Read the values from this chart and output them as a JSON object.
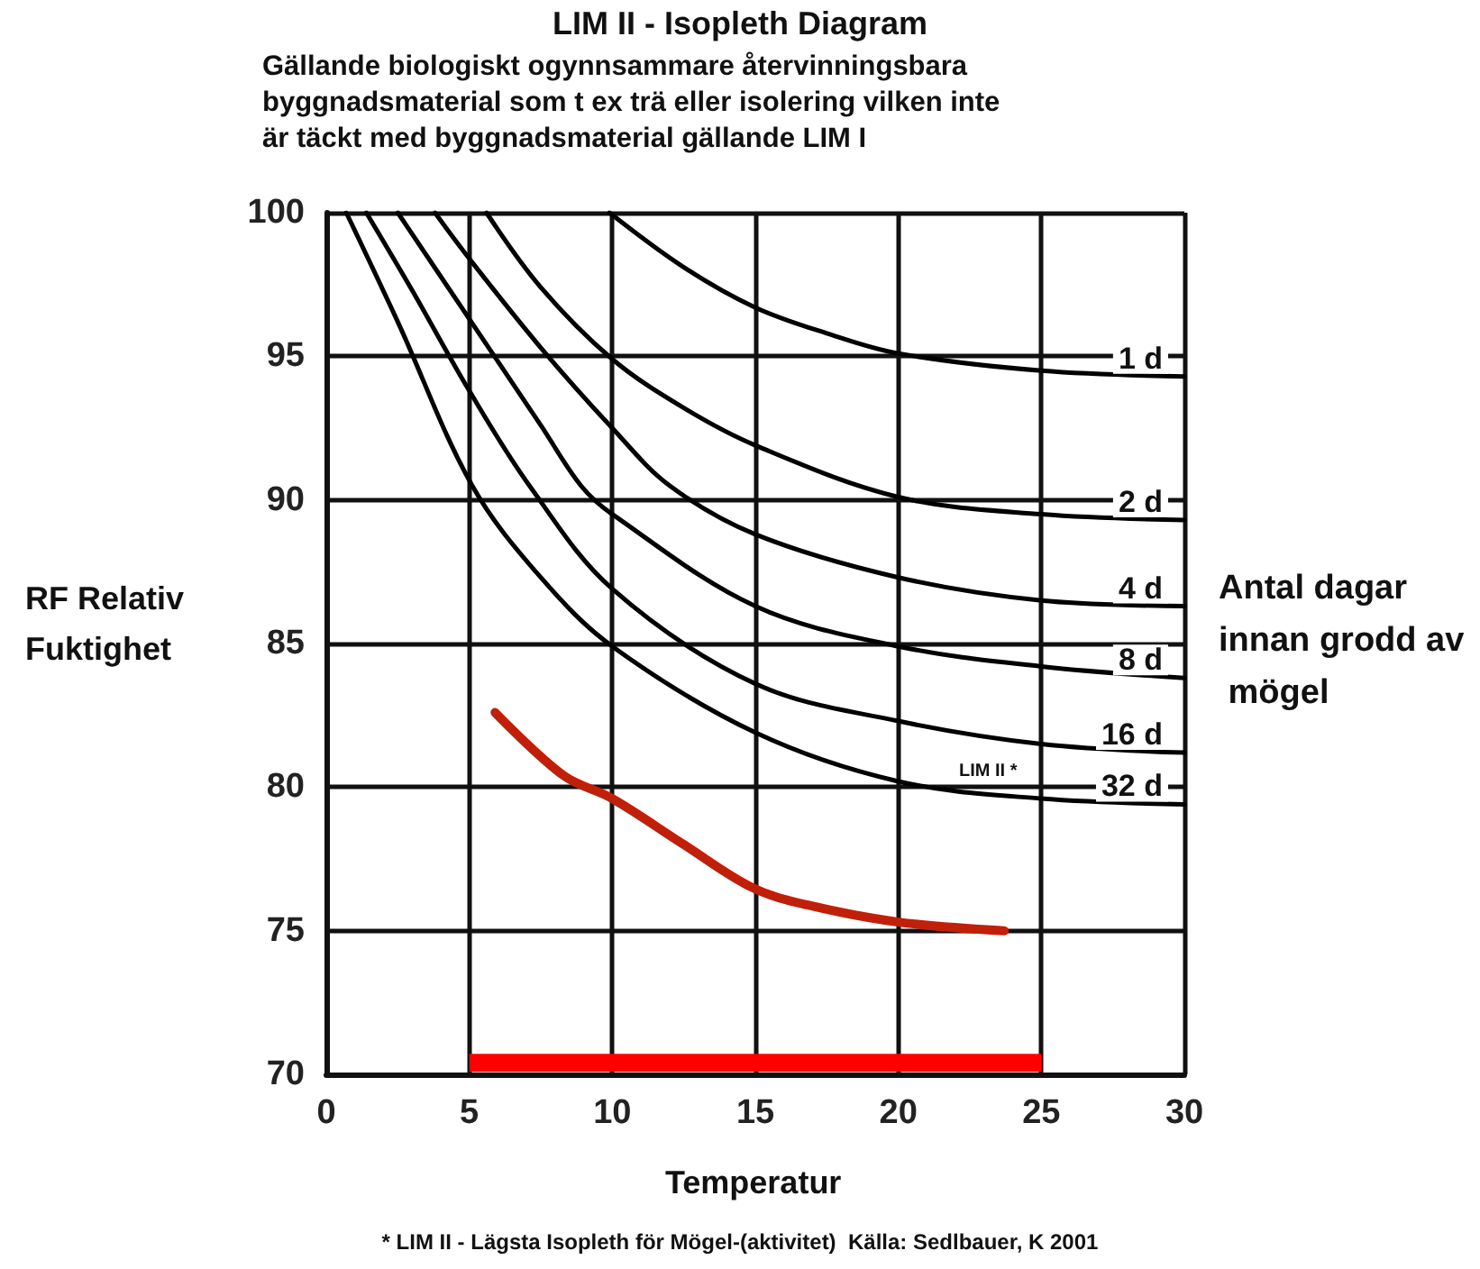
{
  "chart_data": {
    "type": "line",
    "title": "LIM II - Isopleth Diagram",
    "subtitle": "Gällande biologiskt ogynnsammare återvinningsbara byggnadsmaterial som t ex trä eller isolering vilken inte är täckt med byggnadsmaterial gällande LIM I",
    "xlabel": "Temperatur",
    "ylabel": "RF Relativ Fuktighet",
    "legend_title": "Antal dagar innan grodd av mögel",
    "annotations": [
      "LIM II *",
      "* LIM II - Lägsta Isopleth för Mögel-(aktivitet)  Källa: Sedlbauer, K 2001"
    ],
    "xlim": [
      0,
      30
    ],
    "xticks": [
      0,
      5,
      10,
      15,
      20,
      25,
      30
    ],
    "ylim": [
      70,
      100
    ],
    "yticks": [
      70,
      75,
      80,
      85,
      90,
      95,
      100
    ],
    "grid": true,
    "legend": false,
    "marker": "none",
    "line_style": "solid",
    "series": [
      {
        "name": "1 d",
        "color": "#000000",
        "x": [
          9.9,
          12.5,
          15,
          17.5,
          20,
          25,
          30
        ],
        "values": [
          100,
          98.1,
          96.7,
          95.8,
          95.1,
          94.5,
          94.3
        ]
      },
      {
        "name": "2 d",
        "color": "#000000",
        "x": [
          5.6,
          7.5,
          10,
          12.5,
          15,
          20,
          25,
          30
        ],
        "values": [
          100,
          97.4,
          94.9,
          93.2,
          91.9,
          90.1,
          89.5,
          89.3
        ]
      },
      {
        "name": "4 d",
        "color": "#000000",
        "x": [
          3.8,
          5,
          7.5,
          10,
          12,
          15,
          20,
          25,
          30
        ],
        "values": [
          100,
          98.4,
          95.3,
          92.5,
          90.5,
          88.8,
          87.3,
          86.5,
          86.3
        ]
      },
      {
        "name": "8 d",
        "color": "#000000",
        "x": [
          2.5,
          5,
          7.5,
          8.9,
          10,
          15,
          20,
          25,
          30
        ],
        "values": [
          100,
          96.3,
          92.6,
          90.5,
          89.5,
          86.3,
          84.9,
          84.2,
          83.8
        ]
      },
      {
        "name": "16 d",
        "color": "#000000",
        "x": [
          1.4,
          3,
          5,
          7.1,
          10,
          15,
          20,
          25,
          30
        ],
        "values": [
          100,
          97.3,
          93.8,
          90.5,
          86.9,
          83.6,
          82.3,
          81.5,
          81.2
        ]
      },
      {
        "name": "32 d",
        "color": "#000000",
        "x": [
          0.7,
          2.5,
          5.1,
          7.5,
          10,
          15,
          20,
          25,
          30
        ],
        "values": [
          100,
          96.2,
          90.5,
          87.3,
          84.9,
          81.9,
          80.2,
          79.6,
          79.4
        ]
      },
      {
        "color": "#c0200a",
        "x": [
          5.9,
          8.3,
          10,
          12.5,
          14.9,
          16.8,
          20,
          23.7
        ],
        "values": [
          82.6,
          80.4,
          79.6,
          78.0,
          76.5,
          75.9,
          75.3,
          75.0
        ]
      },
      {
        "color": "#ff0000",
        "line_style": "solid",
        "x": [
          5,
          25
        ],
        "values": [
          70.4,
          70.4
        ]
      }
    ]
  }
}
